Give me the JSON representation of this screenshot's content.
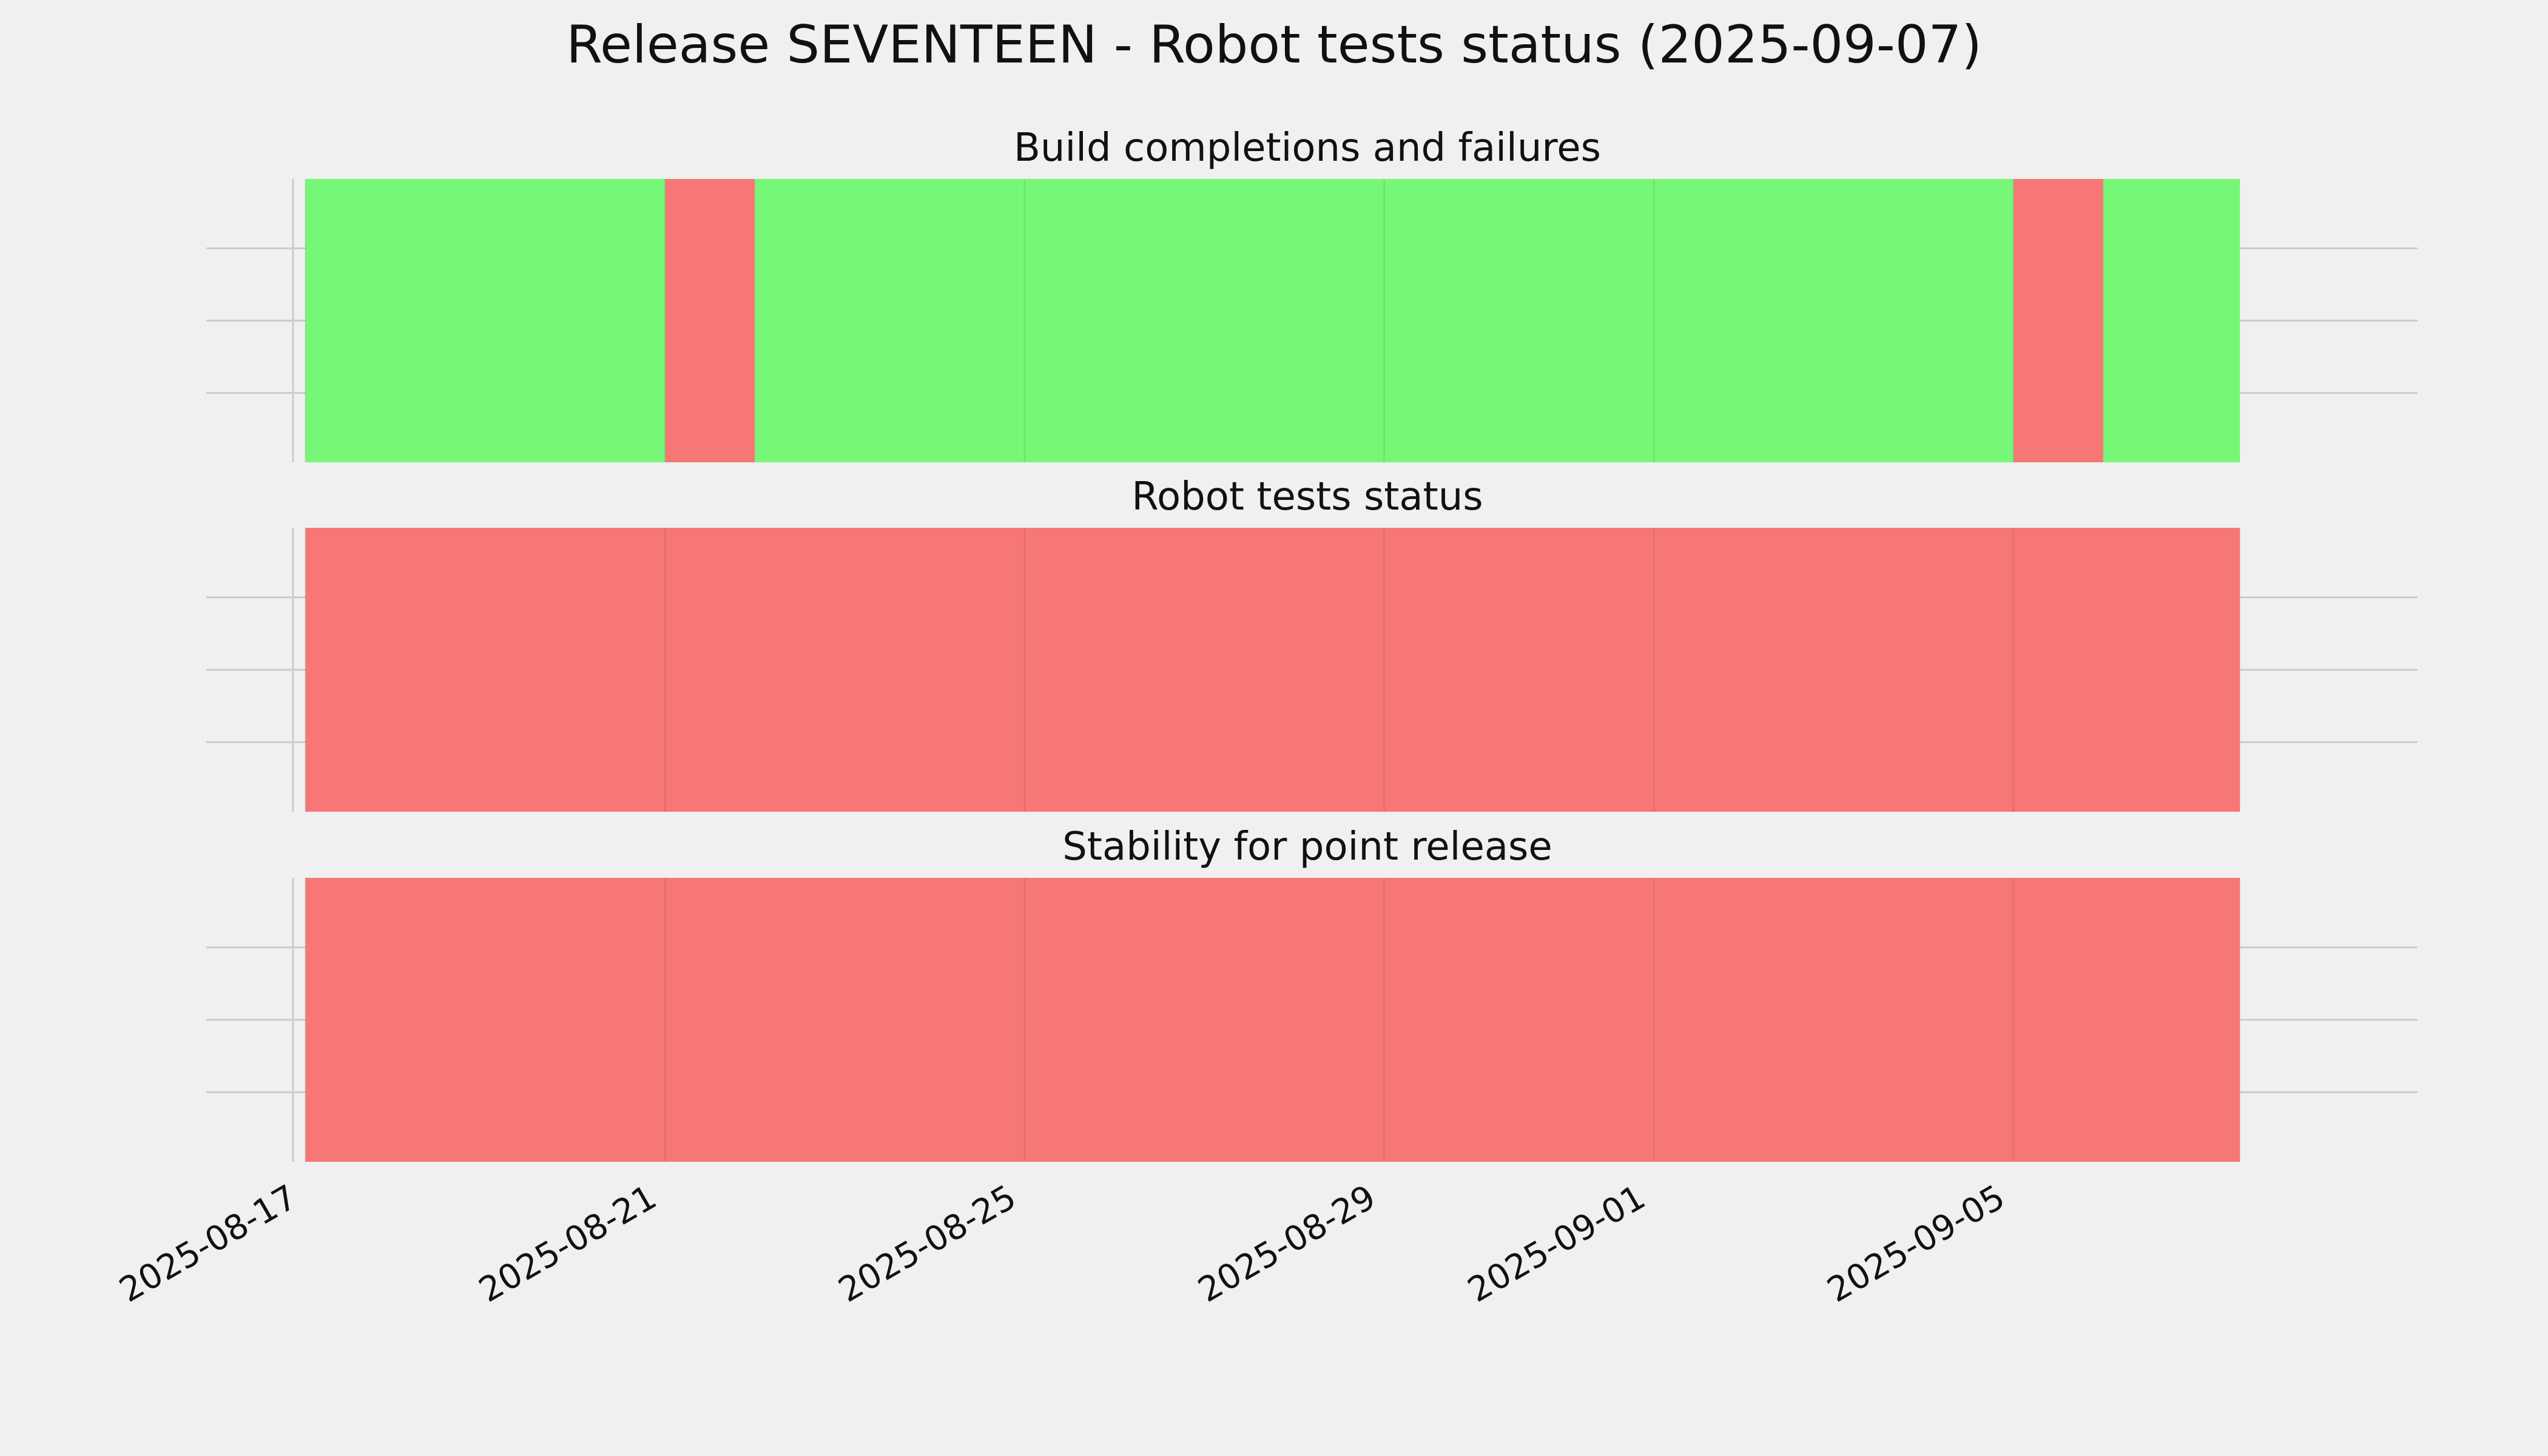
{
  "chart_data": {
    "type": "timeline",
    "title": "Release SEVENTEEN - Robot tests status (2025-09-07)",
    "xlim": [
      "2025-08-16T21:00",
      "2025-09-08T10:00"
    ],
    "x_ticks": [
      "2025-08-17",
      "2025-08-21",
      "2025-08-25",
      "2025-08-29",
      "2025-09-01",
      "2025-09-05"
    ],
    "grid": true,
    "colors": {
      "background": "#f0f0f0",
      "pass": "#77f777",
      "fail": "#f77777",
      "grid": "#cbcbcb"
    },
    "panels": [
      {
        "title": "Build completions and failures",
        "segments": [
          {
            "start": "2025-08-17T00:00",
            "end": "2025-08-21T00:05",
            "status": "pass"
          },
          {
            "start": "2025-08-21T00:05",
            "end": "2025-08-22T00:00",
            "status": "fail"
          },
          {
            "start": "2025-08-22T00:00",
            "end": "2025-09-05T00:05",
            "status": "pass"
          },
          {
            "start": "2025-09-05T00:05",
            "end": "2025-09-06T00:00",
            "status": "fail"
          },
          {
            "start": "2025-09-06T00:00",
            "end": "2025-09-07T12:30",
            "status": "pass"
          }
        ]
      },
      {
        "title": "Robot tests status",
        "segments": [
          {
            "start": "2025-08-17T00:00",
            "end": "2025-09-07T12:30",
            "status": "fail"
          }
        ]
      },
      {
        "title": "Stability for point release",
        "segments": [
          {
            "start": "2025-08-17T00:00",
            "end": "2025-09-07T12:30",
            "status": "fail"
          }
        ]
      }
    ]
  }
}
